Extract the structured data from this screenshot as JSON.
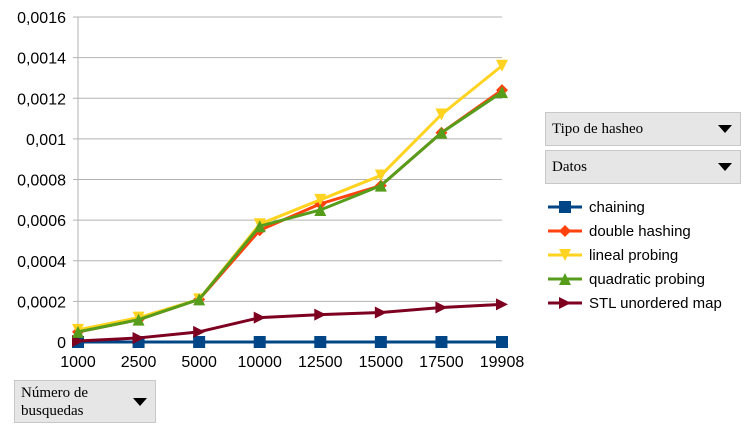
{
  "chart_data": {
    "type": "line",
    "title": "",
    "xlabel": "",
    "ylabel": "",
    "categories": [
      "1000",
      "2500",
      "5000",
      "10000",
      "12500",
      "15000",
      "17500",
      "19908"
    ],
    "y_ticks": [
      "0",
      "0,0002",
      "0,0004",
      "0,0006",
      "0,0008",
      "0,001",
      "0,0012",
      "0,0014",
      "0,0016"
    ],
    "ylim": [
      0,
      0.0016
    ],
    "grid": "horizontal",
    "legend_position": "right",
    "series": [
      {
        "name": "chaining",
        "color": "#004586",
        "marker": "square",
        "values": [
          0,
          0,
          0,
          0,
          0,
          0,
          0,
          0
        ]
      },
      {
        "name": "double hashing",
        "color": "#ff420e",
        "marker": "diamond",
        "values": [
          5e-05,
          0.00011,
          0.00021,
          0.00055,
          0.00068,
          0.00077,
          0.00103,
          0.00124
        ]
      },
      {
        "name": "lineal probing",
        "color": "#ffd320",
        "marker": "triangle-down",
        "values": [
          6e-05,
          0.00012,
          0.00021,
          0.00058,
          0.0007,
          0.00082,
          0.00112,
          0.00136
        ]
      },
      {
        "name": "quadratic probing",
        "color": "#579d1c",
        "marker": "triangle-up",
        "values": [
          5e-05,
          0.00011,
          0.00021,
          0.00057,
          0.00065,
          0.00077,
          0.00103,
          0.00123
        ]
      },
      {
        "name": "STL unordered map",
        "color": "#7e0021",
        "marker": "triangle-right",
        "values": [
          5e-06,
          2e-05,
          5e-05,
          0.00012,
          0.000135,
          0.000145,
          0.00017,
          0.000185
        ]
      }
    ]
  },
  "pivot": {
    "tipo_label": "Tipo de hasheo",
    "datos_label": "Datos",
    "numero_label": "Número de\nbusquedas"
  }
}
